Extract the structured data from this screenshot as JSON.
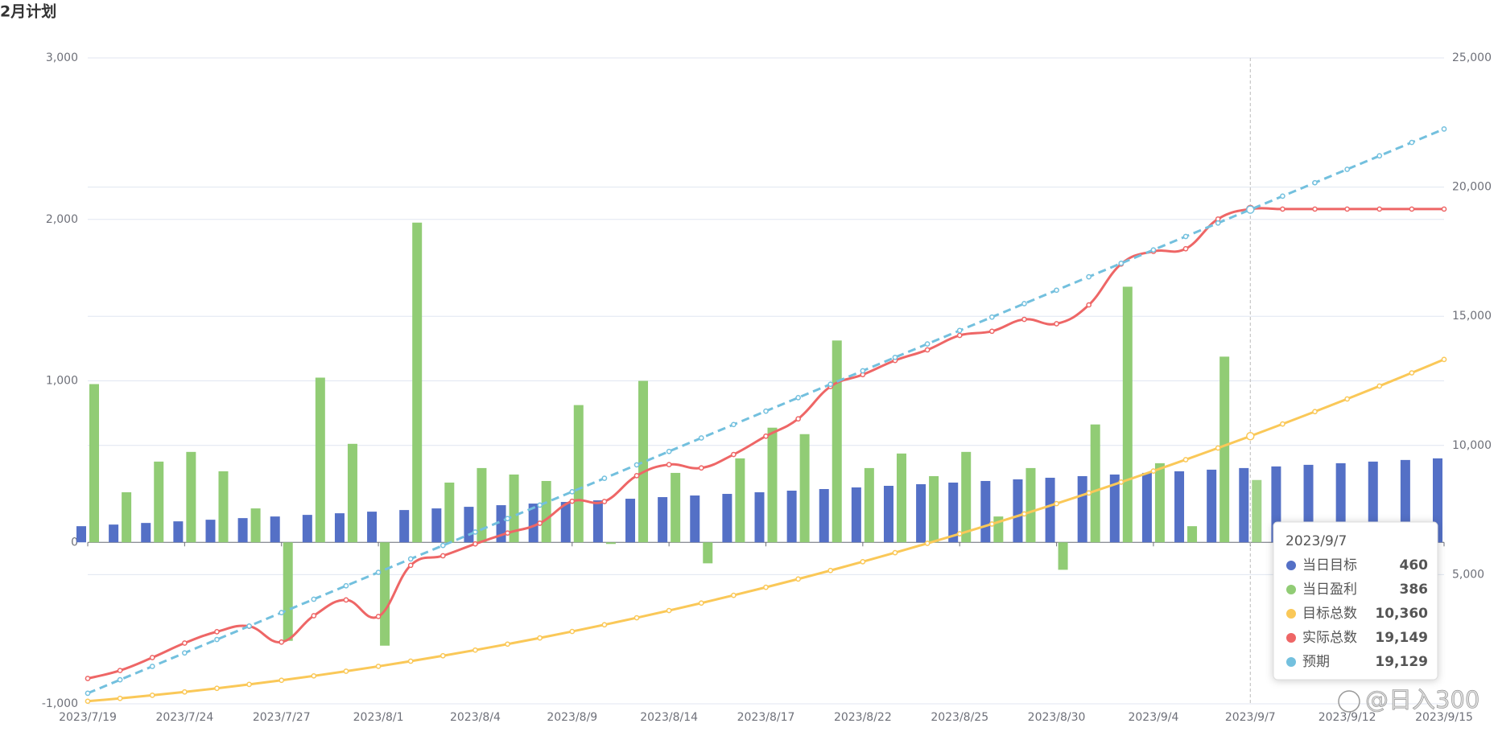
{
  "chart_data": {
    "type": "bar",
    "title": "2月计划",
    "categories": [
      "2023/7/19",
      null,
      null,
      "2023/7/24",
      null,
      null,
      "2023/7/27",
      null,
      null,
      "2023/8/1",
      null,
      null,
      "2023/8/4",
      null,
      null,
      "2023/8/9",
      null,
      null,
      "2023/8/14",
      null,
      null,
      "2023/8/17",
      null,
      null,
      "2023/8/22",
      null,
      null,
      "2023/8/25",
      null,
      null,
      "2023/8/30",
      null,
      null,
      "2023/9/4",
      null,
      null,
      "2023/9/7",
      null,
      null,
      "2023/9/12",
      null,
      null,
      "2023/9/15"
    ],
    "ylim": [
      -1000,
      3000
    ],
    "yticks": [
      {
        "value": -1000,
        "label": "-1,000"
      },
      0,
      {
        "value": 1000,
        "label": "1,000"
      },
      {
        "value": 2000,
        "label": "2,000"
      },
      {
        "value": 3000,
        "label": "3,000"
      }
    ],
    "y2lim": [
      0,
      25000
    ],
    "y2ticks": [
      {
        "value": 5000,
        "label": "5,000"
      },
      {
        "value": 10000,
        "label": "10,000"
      },
      {
        "value": 15000,
        "label": "15,000"
      },
      {
        "value": 20000,
        "label": "20,000"
      },
      {
        "value": 25000,
        "label": "25,000"
      }
    ],
    "grid": true,
    "series": [
      {
        "name": "当日目标",
        "type": "bar",
        "color": "#5470c6",
        "values": [
          100,
          110,
          120,
          130,
          140,
          150,
          160,
          170,
          180,
          190,
          200,
          210,
          220,
          230,
          240,
          250,
          260,
          270,
          280,
          290,
          300,
          310,
          320,
          330,
          340,
          350,
          360,
          370,
          380,
          390,
          400,
          410,
          420,
          430,
          440,
          450,
          460,
          470,
          480,
          490,
          500,
          510,
          520
        ]
      },
      {
        "name": "当日盈利",
        "type": "bar",
        "color": "#91cc75",
        "values": [
          980,
          310,
          500,
          560,
          440,
          210,
          -610,
          1020,
          610,
          -640,
          1980,
          370,
          460,
          420,
          380,
          850,
          -10,
          1000,
          430,
          -130,
          520,
          710,
          670,
          1250,
          460,
          550,
          410,
          560,
          160,
          460,
          -170,
          730,
          1583,
          490,
          100,
          1150,
          386,
          null,
          null,
          null,
          null,
          null,
          null
        ]
      },
      {
        "name": "目标总数",
        "type": "line",
        "axis": "y2",
        "color": "#fac858",
        "values": [
          100,
          210,
          330,
          460,
          600,
          750,
          910,
          1080,
          1260,
          1450,
          1650,
          1860,
          2080,
          2310,
          2550,
          2800,
          3060,
          3330,
          3610,
          3900,
          4200,
          4510,
          4830,
          5160,
          5500,
          5850,
          6210,
          6580,
          6960,
          7350,
          7750,
          8160,
          8580,
          9010,
          9450,
          9900,
          10360,
          10830,
          11310,
          11800,
          12300,
          12810,
          13330
        ]
      },
      {
        "name": "实际总数",
        "type": "line",
        "axis": "y2",
        "smooth": true,
        "color": "#ee6666",
        "values": [
          980,
          1290,
          1790,
          2350,
          2790,
          3000,
          2390,
          3410,
          4020,
          3380,
          5360,
          5730,
          6190,
          6610,
          6990,
          7840,
          7830,
          8830,
          9260,
          9130,
          9650,
          10360,
          11030,
          12280,
          12740,
          13290,
          13700,
          14260,
          14420,
          14880,
          14710,
          15440,
          17023,
          17513,
          17613,
          18763,
          19149,
          19149,
          19149,
          19149,
          19149,
          19149,
          19149
        ]
      },
      {
        "name": "预期",
        "type": "line",
        "axis": "y2",
        "dashed": true,
        "color": "#73c0de",
        "values": [
          409,
          929,
          1449,
          1969,
          2489,
          3009,
          3529,
          4049,
          4569,
          5089,
          5609,
          6129,
          6649,
          7169,
          7689,
          8209,
          8729,
          9249,
          9769,
          10289,
          10809,
          11329,
          11849,
          12369,
          12889,
          13409,
          13929,
          14449,
          14969,
          15489,
          16009,
          16529,
          17049,
          17569,
          18089,
          18609,
          19129,
          19649,
          20169,
          20689,
          21209,
          21729,
          22249
        ]
      }
    ],
    "tooltip": {
      "title": "2023/9/7",
      "values": [
        460,
        386,
        10360,
        19149,
        19129
      ],
      "value_labels": [
        "460",
        "386",
        "10,360",
        "19,149",
        "19,129"
      ]
    },
    "watermark": "@日入300"
  }
}
